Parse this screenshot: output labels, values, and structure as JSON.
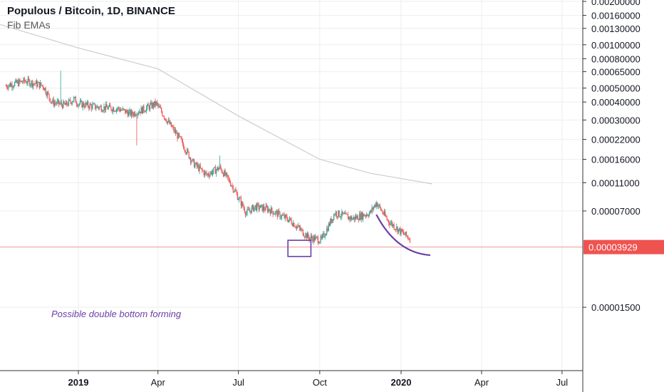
{
  "header": {
    "title": "Populous / Bitcoin, 1D, BINANCE",
    "indicator": "Fib EMAs"
  },
  "chart_data": {
    "type": "candlestick",
    "title": "Populous / Bitcoin, 1D, BINANCE",
    "y_scale": "log",
    "y_ticks": [
      "0.00200000",
      "0.00160000",
      "0.00130000",
      "0.00100000",
      "0.00080000",
      "0.00065000",
      "0.00050000",
      "0.00040000",
      "0.00030000",
      "0.00022000",
      "0.00016000",
      "0.00011000",
      "0.00007000",
      "0.00001500"
    ],
    "x_ticks": [
      "2019",
      "Apr",
      "Jul",
      "Oct",
      "2020",
      "Apr",
      "Jul"
    ],
    "current_price": "0.00003929",
    "annotation": "Possible double bottom forming",
    "colors": {
      "up": "#26a69a",
      "down": "#ef5350",
      "ema": "#cccccc",
      "annotation": "#6a3fa5",
      "price_tag": "#ef5350",
      "grid": "#eeeeee"
    }
  }
}
